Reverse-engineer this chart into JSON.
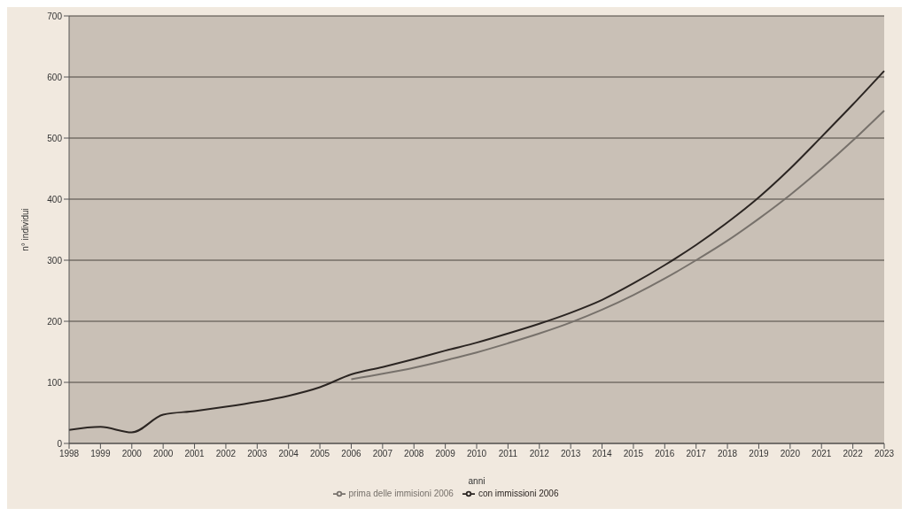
{
  "chart_data": {
    "type": "line",
    "xlabel": "anni",
    "ylabel": "n° individui",
    "categories": [
      "1998",
      "1999",
      "2000",
      "2000",
      "2001",
      "2002",
      "2003",
      "2004",
      "2005",
      "2006",
      "2007",
      "2008",
      "2009",
      "2010",
      "2011",
      "2012",
      "2013",
      "2014",
      "2015",
      "2016",
      "2017",
      "2018",
      "2019",
      "2020",
      "2021",
      "2022",
      "2023"
    ],
    "series": [
      {
        "name": "prima delle immisioni 2006",
        "color": "#77716b",
        "values": [
          null,
          null,
          null,
          null,
          null,
          null,
          null,
          null,
          null,
          105,
          114,
          124,
          136,
          149,
          164,
          180,
          198,
          219,
          243,
          270,
          300,
          332,
          368,
          407,
          450,
          496,
          545
        ]
      },
      {
        "name": "con immissioni 2006",
        "color": "#2b2522",
        "values": [
          22,
          27,
          18,
          47,
          53,
          60,
          68,
          78,
          92,
          113,
          125,
          138,
          152,
          165,
          180,
          196,
          214,
          235,
          262,
          292,
          325,
          362,
          403,
          450,
          502,
          555,
          610
        ]
      }
    ],
    "ylim": [
      0,
      700
    ],
    "yticks": [
      0,
      100,
      200,
      300,
      400,
      500,
      600,
      700
    ],
    "grid": "y",
    "legend": "bottom",
    "marker": "none",
    "line_style": "solid"
  }
}
